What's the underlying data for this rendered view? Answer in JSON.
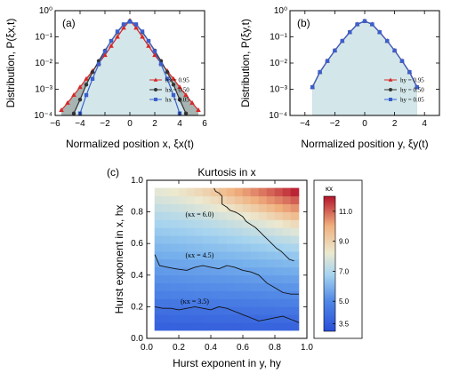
{
  "chart_data": [
    {
      "panel": "(a)",
      "type": "line",
      "xlabel": "Normalized position x, ξx(t)",
      "ylabel": "Distribution, P(ξx,t)",
      "xlim": [
        -6,
        6
      ],
      "ylim": [
        0.0001,
        1
      ],
      "yscale": "log",
      "xticks": [
        "−6",
        "−4",
        "−2",
        "0",
        "2",
        "4",
        "6"
      ],
      "yticks": [
        "10⁻⁴",
        "10⁻³",
        "10⁻²",
        "10⁻¹",
        "10⁰"
      ],
      "legend_position": "lower-right",
      "series": [
        {
          "name": "hx = 0.95",
          "color": "#d62728",
          "marker": "triangle",
          "x": [
            -5.5,
            -5,
            -4.5,
            -4,
            -3.5,
            -3,
            -2.5,
            -2,
            -1.5,
            -1,
            -0.5,
            0,
            0.5,
            1,
            1.5,
            2,
            2.5,
            3,
            3.5,
            4,
            4.5,
            5,
            5.5
          ],
          "y": [
            0.00016,
            0.0003,
            0.0006,
            0.0012,
            0.0025,
            0.005,
            0.01,
            0.02,
            0.045,
            0.1,
            0.22,
            0.42,
            0.22,
            0.1,
            0.045,
            0.02,
            0.01,
            0.005,
            0.0025,
            0.0012,
            0.0006,
            0.0003,
            0.00016
          ]
        },
        {
          "name": "hx = 0.50",
          "color": "#333333",
          "marker": "circle",
          "x": [
            -4.5,
            -4,
            -3.5,
            -3,
            -2.5,
            -2,
            -1.5,
            -1,
            -0.5,
            0,
            0.5,
            1,
            1.5,
            2,
            2.5,
            3,
            3.5,
            4,
            4.5
          ],
          "y": [
            0.00012,
            0.0004,
            0.0015,
            0.0045,
            0.012,
            0.03,
            0.07,
            0.15,
            0.3,
            0.4,
            0.3,
            0.15,
            0.07,
            0.03,
            0.012,
            0.0045,
            0.0015,
            0.0004,
            0.00012
          ]
        },
        {
          "name": "hx = 0.05",
          "color": "#3a5fcd",
          "marker": "square",
          "x": [
            -4,
            -3.5,
            -3,
            -2.5,
            -2,
            -1.5,
            -1,
            -0.5,
            0,
            0.5,
            1,
            1.5,
            2,
            2.5,
            3,
            3.5,
            4
          ],
          "y": [
            0.00012,
            0.0006,
            0.0025,
            0.009,
            0.028,
            0.07,
            0.16,
            0.3,
            0.38,
            0.3,
            0.16,
            0.07,
            0.028,
            0.009,
            0.0025,
            0.0006,
            0.00012
          ]
        }
      ]
    },
    {
      "panel": "(b)",
      "type": "line",
      "xlabel": "Normalized position y, ξy(t)",
      "ylabel": "Distribution, P(ξy,t)",
      "xlim": [
        -5,
        5
      ],
      "ylim": [
        0.0001,
        1
      ],
      "yscale": "log",
      "xticks": [
        "−4",
        "−2",
        "0",
        "2",
        "4"
      ],
      "yticks": [
        "10⁻⁴",
        "10⁻³",
        "10⁻²",
        "10⁻¹",
        "10⁰"
      ],
      "legend_position": "lower-right",
      "series": [
        {
          "name": "hy = 0.95",
          "color": "#d62728",
          "marker": "triangle",
          "x": [
            -3.5,
            -3,
            -2.5,
            -2,
            -1.5,
            -1,
            -0.5,
            0,
            0.5,
            1,
            1.5,
            2,
            2.5,
            3,
            3.5
          ],
          "y": [
            0.0012,
            0.0045,
            0.012,
            0.03,
            0.07,
            0.15,
            0.3,
            0.4,
            0.3,
            0.15,
            0.07,
            0.03,
            0.012,
            0.0045,
            0.0012
          ]
        },
        {
          "name": "hy = 0.50",
          "color": "#333333",
          "marker": "circle",
          "x": [
            -3.5,
            -3,
            -2.5,
            -2,
            -1.5,
            -1,
            -0.5,
            0,
            0.5,
            1,
            1.5,
            2,
            2.5,
            3,
            3.5
          ],
          "y": [
            0.0012,
            0.0045,
            0.012,
            0.03,
            0.07,
            0.15,
            0.3,
            0.4,
            0.3,
            0.15,
            0.07,
            0.03,
            0.012,
            0.0045,
            0.0012
          ]
        },
        {
          "name": "hy = 0.05",
          "color": "#3a5fcd",
          "marker": "square",
          "x": [
            -3.5,
            -3,
            -2.5,
            -2,
            -1.5,
            -1,
            -0.5,
            0,
            0.5,
            1,
            1.5,
            2,
            2.5,
            3,
            3.5
          ],
          "y": [
            0.0012,
            0.0045,
            0.012,
            0.03,
            0.07,
            0.15,
            0.3,
            0.4,
            0.3,
            0.15,
            0.07,
            0.03,
            0.012,
            0.0045,
            0.0012
          ]
        }
      ]
    },
    {
      "panel": "(c)",
      "type": "heatmap",
      "title": "Kurtosis in x",
      "xlabel": "Hurst exponent in y, hy",
      "ylabel": "Hurst exponent in x, hx",
      "xlim": [
        0,
        1
      ],
      "ylim": [
        0,
        1
      ],
      "xticks": [
        "0.0",
        "0.2",
        "0.4",
        "0.6",
        "0.8",
        "1.0"
      ],
      "yticks": [
        "0.0",
        "0.2",
        "0.4",
        "0.6",
        "0.8",
        "1.0"
      ],
      "colorbar": {
        "label": "κx",
        "ticks": [
          "11.0",
          "9.0",
          "7.0",
          "5.0",
          "3.5"
        ],
        "range": [
          3.0,
          12.0
        ]
      },
      "contours": [
        {
          "label": "(κx = 6.0)",
          "level": 6.0,
          "points": [
            [
              0.42,
              0.95
            ],
            [
              0.43,
              0.93
            ],
            [
              0.45,
              0.92
            ],
            [
              0.47,
              0.9
            ],
            [
              0.47,
              0.85
            ],
            [
              0.5,
              0.83
            ],
            [
              0.52,
              0.81
            ],
            [
              0.55,
              0.8
            ],
            [
              0.57,
              0.79
            ],
            [
              0.6,
              0.77
            ],
            [
              0.62,
              0.74
            ],
            [
              0.65,
              0.72
            ],
            [
              0.68,
              0.7
            ],
            [
              0.71,
              0.67
            ],
            [
              0.73,
              0.65
            ],
            [
              0.75,
              0.63
            ],
            [
              0.78,
              0.6
            ],
            [
              0.81,
              0.57
            ],
            [
              0.84,
              0.55
            ],
            [
              0.87,
              0.52
            ],
            [
              0.89,
              0.5
            ],
            [
              0.92,
              0.49
            ]
          ]
        },
        {
          "label": "(κx = 4.5)",
          "level": 4.5,
          "points": [
            [
              0.05,
              0.53
            ],
            [
              0.08,
              0.46
            ],
            [
              0.13,
              0.45
            ],
            [
              0.18,
              0.44
            ],
            [
              0.25,
              0.43
            ],
            [
              0.3,
              0.45
            ],
            [
              0.35,
              0.46
            ],
            [
              0.4,
              0.45
            ],
            [
              0.45,
              0.44
            ],
            [
              0.5,
              0.46
            ],
            [
              0.55,
              0.45
            ],
            [
              0.6,
              0.43
            ],
            [
              0.65,
              0.42
            ],
            [
              0.7,
              0.4
            ],
            [
              0.75,
              0.35
            ],
            [
              0.8,
              0.32
            ],
            [
              0.85,
              0.29
            ],
            [
              0.9,
              0.28
            ],
            [
              0.95,
              0.28
            ]
          ]
        },
        {
          "label": "(κx = 3.5)",
          "level": 3.5,
          "points": [
            [
              0.05,
              0.2
            ],
            [
              0.1,
              0.19
            ],
            [
              0.15,
              0.19
            ],
            [
              0.2,
              0.18
            ],
            [
              0.25,
              0.19
            ],
            [
              0.3,
              0.2
            ],
            [
              0.35,
              0.19
            ],
            [
              0.4,
              0.18
            ],
            [
              0.45,
              0.2
            ],
            [
              0.5,
              0.19
            ],
            [
              0.55,
              0.17
            ],
            [
              0.6,
              0.15
            ],
            [
              0.65,
              0.13
            ],
            [
              0.7,
              0.11
            ],
            [
              0.75,
              0.12
            ],
            [
              0.8,
              0.13
            ],
            [
              0.85,
              0.14
            ],
            [
              0.9,
              0.12
            ],
            [
              0.95,
              0.1
            ]
          ]
        }
      ]
    }
  ]
}
